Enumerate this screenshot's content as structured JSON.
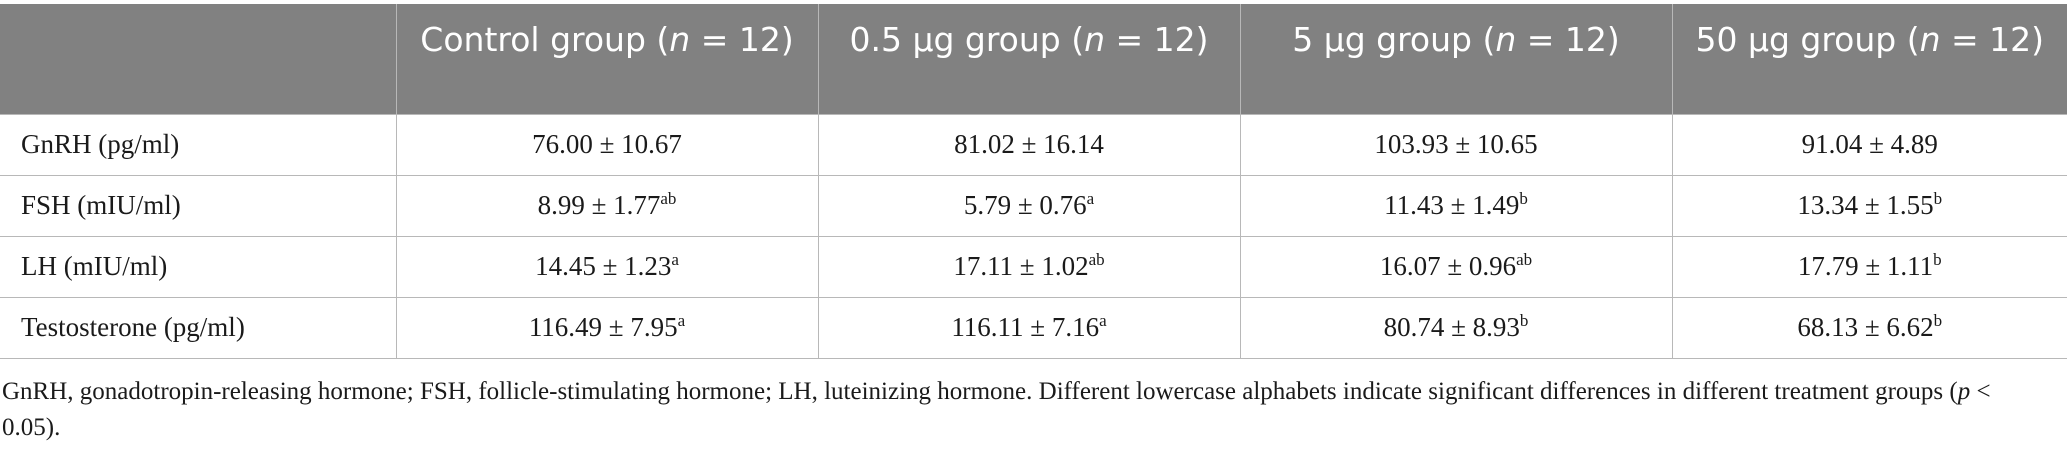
{
  "table": {
    "headers": [
      {
        "pre": "",
        "italic": "",
        "post": ""
      },
      {
        "pre": "Control group (",
        "italic": "n",
        "post": " = 12)"
      },
      {
        "pre": "0.5 µg group (",
        "italic": "n",
        "post": " = 12)"
      },
      {
        "pre": "5 µg group (",
        "italic": "n",
        "post": " = 12)"
      },
      {
        "pre": "50 µg group (",
        "italic": "n",
        "post": " = 12)"
      }
    ],
    "rows": [
      {
        "label": "GnRH (pg/ml)",
        "cells": [
          {
            "value": "76.00 ± 10.67",
            "sup": ""
          },
          {
            "value": "81.02 ± 16.14",
            "sup": ""
          },
          {
            "value": "103.93 ± 10.65",
            "sup": ""
          },
          {
            "value": "91.04 ± 4.89",
            "sup": ""
          }
        ]
      },
      {
        "label": "FSH (mIU/ml)",
        "cells": [
          {
            "value": "8.99 ± 1.77",
            "sup": "ab"
          },
          {
            "value": "5.79 ± 0.76",
            "sup": "a"
          },
          {
            "value": "11.43 ± 1.49",
            "sup": "b"
          },
          {
            "value": "13.34 ± 1.55",
            "sup": "b"
          }
        ]
      },
      {
        "label": "LH (mIU/ml)",
        "cells": [
          {
            "value": "14.45 ± 1.23",
            "sup": "a"
          },
          {
            "value": "17.11 ± 1.02",
            "sup": "ab"
          },
          {
            "value": "16.07 ± 0.96",
            "sup": "ab"
          },
          {
            "value": "17.79 ± 1.11",
            "sup": "b"
          }
        ]
      },
      {
        "label": "Testosterone (pg/ml)",
        "cells": [
          {
            "value": "116.49 ± 7.95",
            "sup": "a"
          },
          {
            "value": "116.11 ± 7.16",
            "sup": "a"
          },
          {
            "value": "80.74 ± 8.93",
            "sup": "b"
          },
          {
            "value": "68.13 ± 6.62",
            "sup": "b"
          }
        ]
      }
    ]
  },
  "footnote": {
    "pre": "GnRH, gonadotropin-releasing hormone; FSH, follicle-stimulating hormone; LH, luteinizing hormone. Different lowercase alphabets indicate significant differences in different treatment groups (",
    "italic": "p",
    "post": " < 0.05)."
  },
  "colors": {
    "header_bg": "#818181",
    "header_text": "#ffffff",
    "grid": "#b8b8b8"
  }
}
